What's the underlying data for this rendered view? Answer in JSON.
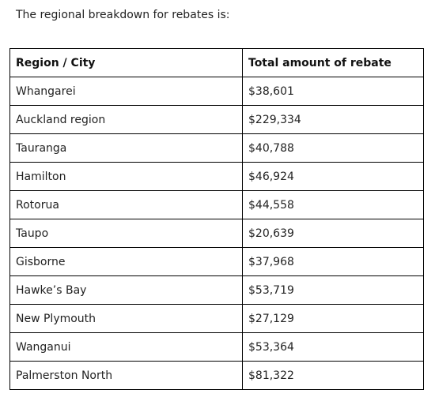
{
  "intro_text": "The regional breakdown for rebates is:",
  "table": {
    "headers": {
      "region": "Region / City",
      "amount": "Total amount of rebate"
    },
    "rows": [
      {
        "region": "Whangarei",
        "amount": "$38,601"
      },
      {
        "region": "Auckland region",
        "amount": "$229,334"
      },
      {
        "region": "Tauranga",
        "amount": "$40,788"
      },
      {
        "region": "Hamilton",
        "amount": "$46,924"
      },
      {
        "region": "Rotorua",
        "amount": "$44,558"
      },
      {
        "region": "Taupo",
        "amount": "$20,639"
      },
      {
        "region": "Gisborne",
        "amount": "$37,968"
      },
      {
        "region": "Hawke’s Bay",
        "amount": "$53,719"
      },
      {
        "region": "New Plymouth",
        "amount": "$27,129"
      },
      {
        "region": "Wanganui",
        "amount": "$53,364"
      },
      {
        "region": "Palmerston North",
        "amount": "$81,322"
      }
    ]
  }
}
